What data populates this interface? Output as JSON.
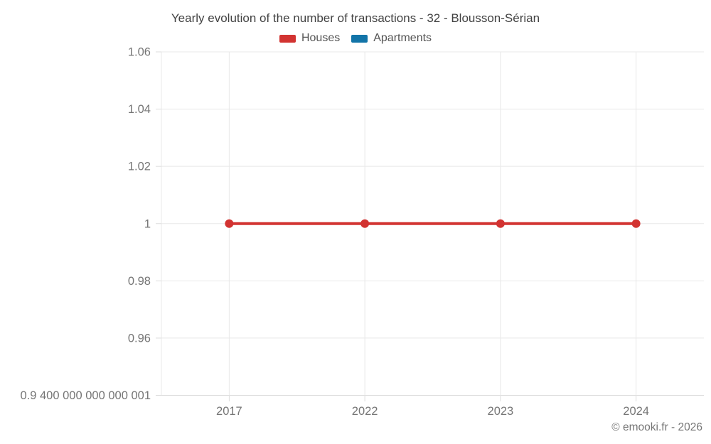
{
  "chart_data": {
    "type": "line",
    "title": "Yearly evolution of the number of transactions - 32 - Blousson-Sérian",
    "categories": [
      "2017",
      "2022",
      "2023",
      "2024"
    ],
    "series": [
      {
        "name": "Houses",
        "color": "#d23331",
        "values": [
          1,
          1,
          1,
          1
        ]
      },
      {
        "name": "Apartments",
        "color": "#1274a8",
        "values": []
      }
    ],
    "y_axis": {
      "range": [
        0.9400000000000001,
        1.06
      ],
      "ticks": [
        {
          "value": 0.9400000000000001,
          "label": "0.9 400 000 000 000 001"
        },
        {
          "value": 0.96,
          "label": "0.96"
        },
        {
          "value": 0.98,
          "label": "0.98"
        },
        {
          "value": 1,
          "label": "1"
        },
        {
          "value": 1.02,
          "label": "1.02"
        },
        {
          "value": 1.04,
          "label": "1.04"
        },
        {
          "value": 1.06,
          "label": "1.06"
        }
      ]
    },
    "grid": true,
    "legend_position": "top",
    "footer": "© emooki.fr - 2026",
    "colors": {
      "grid": "#e8e8e8",
      "axis_line": "#dcdcdc",
      "tick_mark": "#dcdcdc",
      "axis_label": "#757575",
      "title_text": "#424242"
    }
  }
}
